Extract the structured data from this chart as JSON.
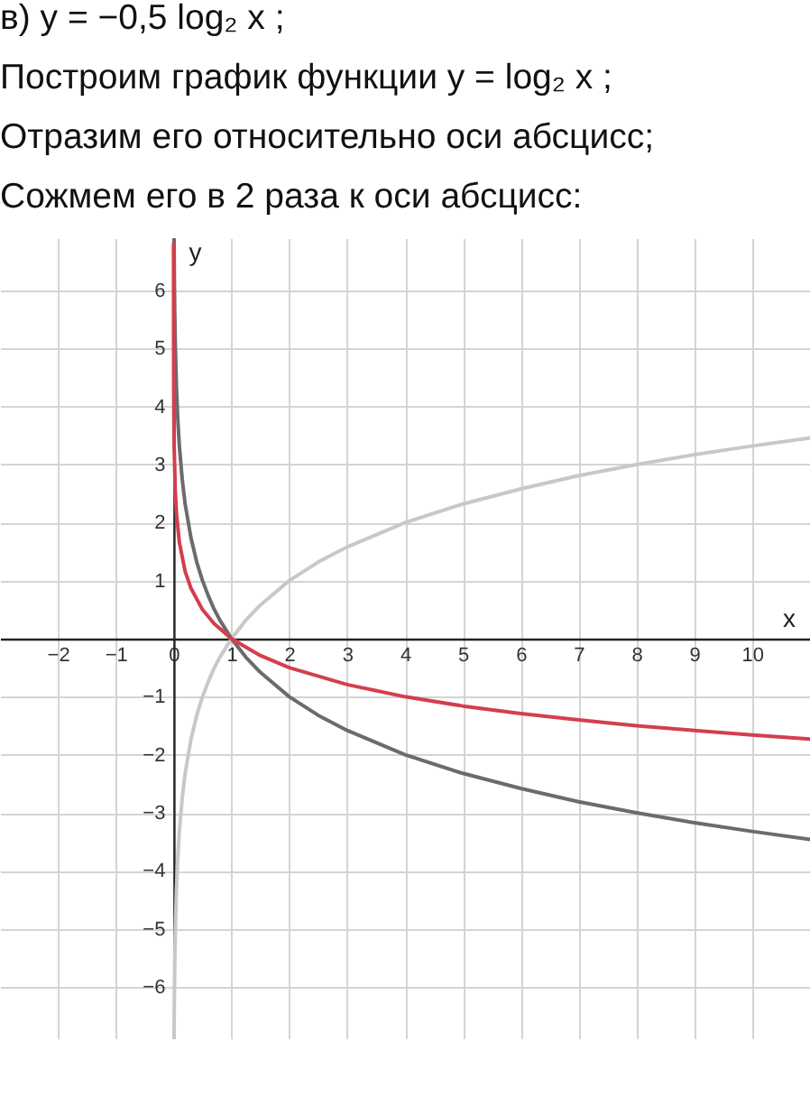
{
  "chart_data": {
    "type": "line",
    "title": "в) y = −0,5 log₂ x ;",
    "annotations": [
      "Построим график функции y = log₂ x ;",
      "Отразим его относительно оси абсцисс;",
      "Сожмем его в 2 раза к оси абсцисс:"
    ],
    "xlabel": "x",
    "ylabel": "y",
    "xlim": [
      -3,
      11
    ],
    "ylim": [
      -6.9,
      6.9
    ],
    "xticks": [
      -2,
      -1,
      0,
      1,
      2,
      3,
      4,
      5,
      6,
      7,
      8,
      9,
      10
    ],
    "yticks": [
      -6,
      -5,
      -4,
      -3,
      -2,
      -1,
      1,
      2,
      3,
      4,
      5,
      6
    ],
    "grid": true,
    "line_style": "solid",
    "series": [
      {
        "color": "#c8c8c8",
        "x": [
          0.0085,
          0.01,
          0.015,
          0.02,
          0.03,
          0.05,
          0.075,
          0.1,
          0.15,
          0.2,
          0.3,
          0.4,
          0.5,
          0.6,
          0.7,
          0.8,
          1,
          1.25,
          1.5,
          2,
          2.5,
          3,
          4,
          5,
          6,
          7,
          8,
          9,
          10,
          11
        ],
        "values": [
          -6.88,
          -6.64,
          -6.06,
          -5.64,
          -5.06,
          -4.32,
          -3.74,
          -3.32,
          -2.74,
          -2.32,
          -1.74,
          -1.32,
          -1,
          -0.74,
          -0.51,
          -0.32,
          0,
          0.32,
          0.58,
          1,
          1.32,
          1.58,
          2,
          2.32,
          2.58,
          2.81,
          3,
          3.17,
          3.32,
          3.46
        ]
      },
      {
        "color": "#6b6b6b",
        "x": [
          0.0085,
          0.01,
          0.015,
          0.02,
          0.03,
          0.05,
          0.075,
          0.1,
          0.15,
          0.2,
          0.3,
          0.4,
          0.5,
          0.6,
          0.7,
          0.8,
          1,
          1.25,
          1.5,
          2,
          2.5,
          3,
          4,
          5,
          6,
          7,
          8,
          9,
          10,
          11
        ],
        "values": [
          6.88,
          6.64,
          6.06,
          5.64,
          5.06,
          4.32,
          3.74,
          3.32,
          2.74,
          2.32,
          1.74,
          1.32,
          1,
          0.74,
          0.51,
          0.32,
          0,
          -0.32,
          -0.58,
          -1,
          -1.32,
          -1.58,
          -2,
          -2.32,
          -2.58,
          -2.81,
          -3,
          -3.17,
          -3.32,
          -3.46
        ]
      },
      {
        "color": "#d33f4c",
        "x": [
          8e-05,
          0.0001,
          0.0003,
          0.001,
          0.003,
          0.01,
          0.03,
          0.05,
          0.1,
          0.2,
          0.3,
          0.5,
          0.7,
          1,
          1.5,
          2,
          3,
          4,
          5,
          6,
          7,
          8,
          9,
          10,
          11
        ],
        "values": [
          6.8,
          6.64,
          5.85,
          4.98,
          4.19,
          3.32,
          2.53,
          2.16,
          1.66,
          1.16,
          0.87,
          0.5,
          0.26,
          0,
          -0.29,
          -0.5,
          -0.79,
          -1,
          -1.16,
          -1.29,
          -1.4,
          -1.5,
          -1.58,
          -1.66,
          -1.73
        ]
      }
    ]
  }
}
